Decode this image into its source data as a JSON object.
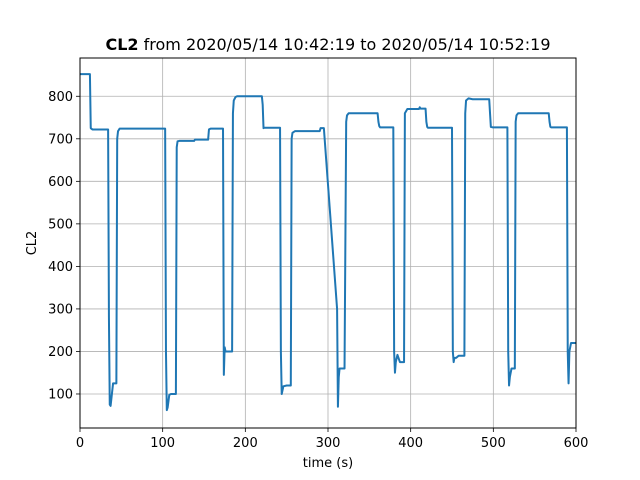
{
  "chart_data": {
    "type": "line",
    "title_bold": "CL2",
    "title_rest": " from 2020/05/14 10:42:19 to 2020/05/14 10:52:19",
    "xlabel": "time (s)",
    "ylabel": "CL2",
    "xlim": [
      0,
      600
    ],
    "ylim": [
      20,
      890
    ],
    "xticks": [
      0,
      100,
      200,
      300,
      400,
      500,
      600
    ],
    "yticks": [
      100,
      200,
      300,
      400,
      500,
      600,
      700,
      800
    ],
    "grid": true,
    "line_color": "#1f77b4",
    "series": [
      {
        "x": [
          0,
          12,
          13,
          15,
          34,
          35,
          36,
          37,
          40,
          44,
          45,
          46,
          48,
          103,
          104,
          105,
          106,
          108,
          110,
          116,
          117,
          118,
          120,
          138,
          139,
          155,
          156,
          158,
          173,
          174,
          175,
          176,
          178,
          184,
          185,
          186,
          188,
          190,
          220,
          221,
          222,
          223,
          242,
          243,
          244,
          246,
          250,
          255,
          256,
          257,
          260,
          290,
          291,
          295,
          311,
          312,
          313,
          314,
          316,
          320,
          322,
          323,
          325,
          328,
          360,
          361,
          362,
          363,
          379,
          380,
          381,
          382,
          384,
          387,
          390,
          392,
          393,
          396,
          410,
          411,
          412,
          418,
          419,
          420,
          421,
          439,
          440,
          450,
          451,
          452,
          453,
          455,
          458,
          465,
          466,
          467,
          470,
          475,
          476,
          495,
          496,
          497,
          499,
          517,
          518,
          519,
          520,
          522,
          526,
          527,
          528,
          530,
          545,
          546,
          547,
          567,
          568,
          569,
          570,
          589,
          590,
          591,
          592,
          594,
          600
        ],
        "y": [
          852,
          852,
          725,
          722,
          722,
          280,
          75,
          72,
          125,
          125,
          700,
          718,
          724,
          724,
          200,
          62,
          68,
          98,
          100,
          100,
          680,
          694,
          695,
          695,
          698,
          698,
          722,
          724,
          724,
          145,
          210,
          200,
          200,
          200,
          760,
          790,
          798,
          800,
          800,
          780,
          725,
          726,
          726,
          200,
          100,
          118,
          120,
          120,
          700,
          714,
          718,
          718,
          725,
          725,
          300,
          70,
          140,
          160,
          160,
          160,
          740,
          755,
          760,
          760,
          760,
          740,
          730,
          727,
          727,
          200,
          150,
          175,
          192,
          175,
          175,
          175,
          760,
          770,
          770,
          774,
          771,
          771,
          740,
          728,
          726,
          726,
          726,
          726,
          200,
          175,
          185,
          185,
          190,
          190,
          760,
          790,
          795,
          793,
          793,
          793,
          760,
          728,
          727,
          727,
          200,
          120,
          140,
          160,
          160,
          740,
          755,
          760,
          760,
          760,
          760,
          760,
          740,
          728,
          727,
          727,
          200,
          125,
          200,
          220,
          220
        ]
      }
    ]
  }
}
